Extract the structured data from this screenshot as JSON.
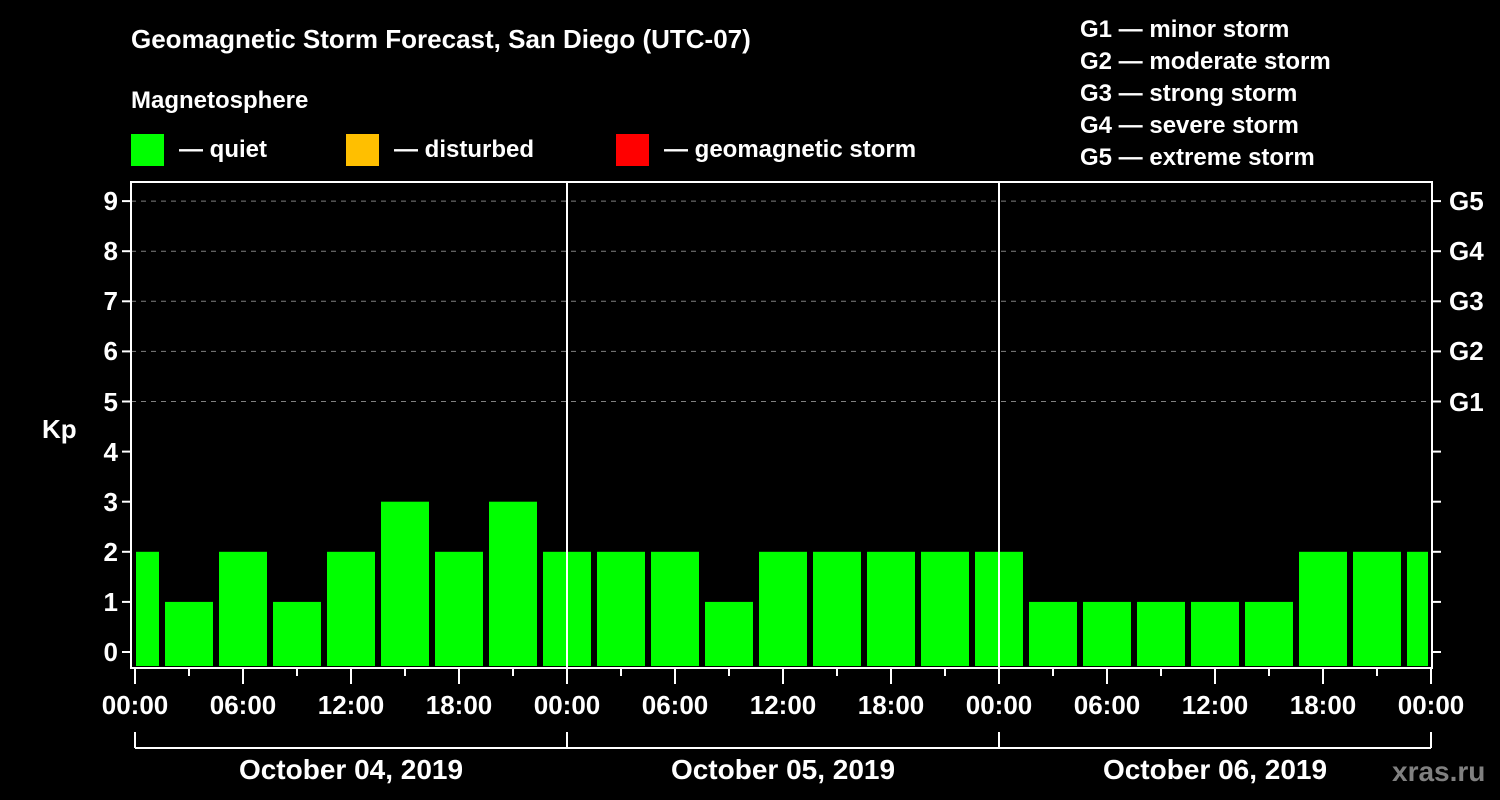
{
  "header": {
    "title": "Geomagnetic Storm Forecast, San Diego (UTC-07)",
    "subtitle": "Magnetosphere"
  },
  "legend": {
    "items": [
      {
        "label": "— quiet",
        "color": "#00ff00"
      },
      {
        "label": "— disturbed",
        "color": "#ffbf00"
      },
      {
        "label": "— geomagnetic storm",
        "color": "#ff0000"
      }
    ]
  },
  "g_scale": [
    "G1 — minor storm",
    "G2 — moderate storm",
    "G3 — strong storm",
    "G4 — severe storm",
    "G5 — extreme storm"
  ],
  "axes": {
    "ylabel": "Kp",
    "y_ticks": [
      "0",
      "1",
      "2",
      "3",
      "4",
      "5",
      "6",
      "7",
      "8",
      "9"
    ],
    "g_ticks": [
      "G1",
      "G2",
      "G3",
      "G4",
      "G5"
    ],
    "x_ticks": [
      "00:00",
      "06:00",
      "12:00",
      "18:00",
      "00:00",
      "06:00",
      "12:00",
      "18:00",
      "00:00",
      "06:00",
      "12:00",
      "18:00",
      "00:00"
    ],
    "days": [
      "October 04, 2019",
      "October 05, 2019",
      "October 06, 2019"
    ]
  },
  "watermark": "xras.ru",
  "colors": {
    "quiet": "#00ff00",
    "disturbed": "#ffbf00",
    "storm": "#ff0000",
    "grid": "#808080",
    "axis": "#ffffff",
    "background": "#000000"
  },
  "chart_data": {
    "type": "bar",
    "title": "Geomagnetic Storm Forecast, San Diego (UTC-07)",
    "subtitle": "Magnetosphere",
    "xlabel": "",
    "ylabel": "Kp",
    "ylim": [
      0,
      9
    ],
    "secondary_y_ticks": {
      "5": "G1",
      "6": "G2",
      "7": "G3",
      "8": "G4",
      "9": "G5"
    },
    "grid": "dashed horizontal at Kp 5-9",
    "legend_position": "top",
    "x_range": [
      "2019-10-04 00:00",
      "2019-10-07 00:00"
    ],
    "bar_interval_hours": 3,
    "bar_offset_hours": -1.5,
    "categories": [
      "Oct 04 ~00:00",
      "Oct 04 ~02:00",
      "Oct 04 ~05:00",
      "Oct 04 ~08:00",
      "Oct 04 ~11:00",
      "Oct 04 ~14:00",
      "Oct 04 ~17:00",
      "Oct 04 ~20:00",
      "Oct 04 ~23:00",
      "Oct 05 ~02:00",
      "Oct 05 ~05:00",
      "Oct 05 ~08:00",
      "Oct 05 ~11:00",
      "Oct 05 ~14:00",
      "Oct 05 ~17:00",
      "Oct 05 ~20:00",
      "Oct 05 ~23:00",
      "Oct 06 ~02:00",
      "Oct 06 ~05:00",
      "Oct 06 ~08:00",
      "Oct 06 ~11:00",
      "Oct 06 ~14:00",
      "Oct 06 ~17:00",
      "Oct 06 ~20:00",
      "Oct 06 ~23:00"
    ],
    "values": [
      2,
      1,
      2,
      1,
      2,
      3,
      2,
      3,
      2,
      2,
      2,
      1,
      2,
      2,
      2,
      2,
      2,
      1,
      1,
      1,
      1,
      1,
      2,
      2,
      2
    ],
    "status": "quiet (all bars green)"
  }
}
